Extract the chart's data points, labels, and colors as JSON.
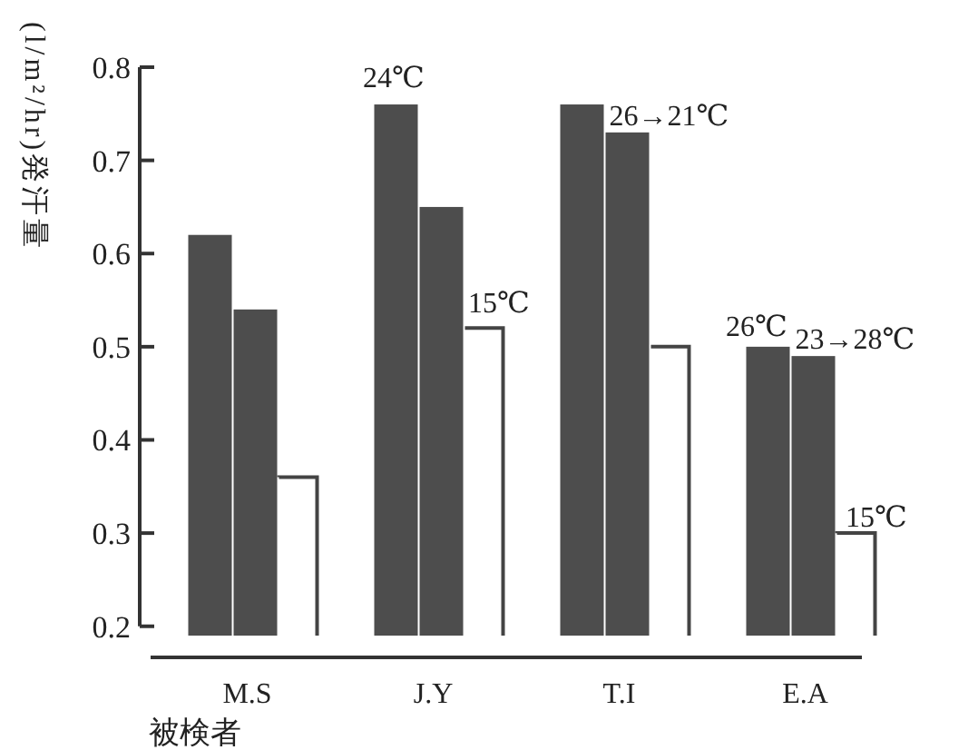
{
  "chart_data": {
    "type": "bar",
    "ylabel": "(l/m²/hr)発汗量",
    "xlabel": "被検者",
    "categories": [
      "M.S",
      "J.Y",
      "T.I",
      "E.A"
    ],
    "series": [
      {
        "color": "#4d4d4d",
        "values": [
          0.62,
          0.76,
          0.76,
          0.5
        ]
      },
      {
        "color": "#4d4d4d",
        "values": [
          0.54,
          0.65,
          0.73,
          0.49
        ]
      },
      {
        "color": "#ffffff",
        "values": [
          0.36,
          0.52,
          0.5,
          0.3
        ]
      }
    ],
    "ylim": [
      0.19,
      0.8
    ],
    "yticks": [
      0.2,
      0.3,
      0.4,
      0.5,
      0.6,
      0.7,
      0.8
    ],
    "grid": false,
    "annotations": [
      "24℃",
      "15℃",
      {
        "text": "26→21℃",
        "x": "T.I",
        "y": 0.73
      },
      "26℃",
      {
        "text": "23→28℃",
        "x": "E.A",
        "y": 0.49
      },
      "15℃"
    ]
  }
}
